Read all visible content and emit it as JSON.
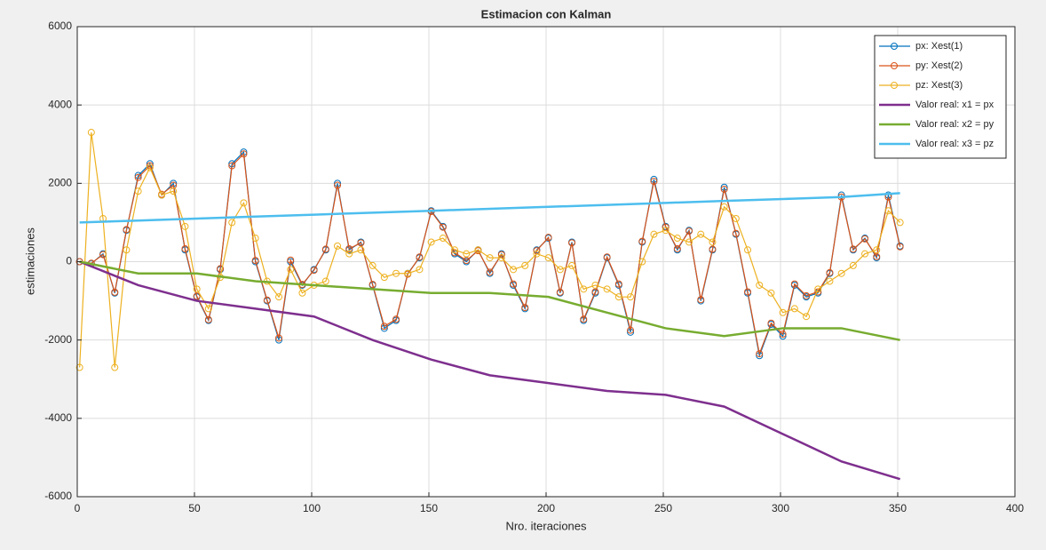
{
  "chart_data": {
    "type": "line",
    "title": "Estimacion con Kalman",
    "xlabel": "Nro. iteraciones",
    "ylabel": "estimaciones",
    "xlim": [
      0,
      400
    ],
    "xticks": [
      0,
      50,
      100,
      150,
      200,
      250,
      300,
      350,
      400
    ],
    "ylim": [
      -6000,
      6000
    ],
    "yticks": [
      -6000,
      -4000,
      -2000,
      0,
      2000,
      4000,
      6000
    ],
    "grid": true,
    "legend": "upper right",
    "series": [
      {
        "name": "px: Xest(1)",
        "color": "#0072bd",
        "marker": "circle",
        "x": [
          1,
          6,
          11,
          16,
          21,
          26,
          31,
          36,
          41,
          46,
          51,
          56,
          61,
          66,
          71,
          76,
          81,
          86,
          91,
          96,
          101,
          106,
          111,
          116,
          121,
          126,
          131,
          136,
          141,
          146,
          151,
          156,
          161,
          166,
          171,
          176,
          181,
          186,
          191,
          196,
          201,
          206,
          211,
          216,
          221,
          226,
          231,
          236,
          241,
          246,
          251,
          256,
          261,
          266,
          271,
          276,
          281,
          286,
          291,
          296,
          301,
          306,
          311,
          316,
          321,
          326,
          331,
          336,
          341,
          346,
          351
        ],
        "values": [
          0,
          -50,
          200,
          -800,
          800,
          2200,
          2500,
          1700,
          2000,
          300,
          -900,
          -1500,
          -200,
          2500,
          2800,
          0,
          -1000,
          -2000,
          0,
          -600,
          -200,
          300,
          2000,
          300,
          500,
          -600,
          -1700,
          -1500,
          -300,
          100,
          1300,
          900,
          200,
          0,
          300,
          -300,
          200,
          -600,
          -1200,
          300,
          600,
          -800,
          500,
          -1500,
          -800,
          100,
          -600,
          -1800,
          500,
          2100,
          900,
          300,
          800,
          -1000,
          300,
          1900,
          700,
          -800,
          -2400,
          -1600,
          -1900,
          -600,
          -900,
          -800,
          -300,
          1700,
          300,
          600,
          100,
          1700,
          400
        ]
      },
      {
        "name": "py: Xest(2)",
        "color": "#d95319",
        "marker": "circle",
        "x": [
          1,
          6,
          11,
          16,
          21,
          26,
          31,
          36,
          41,
          46,
          51,
          56,
          61,
          66,
          71,
          76,
          81,
          86,
          91,
          96,
          101,
          106,
          111,
          116,
          121,
          126,
          131,
          136,
          141,
          146,
          151,
          156,
          161,
          166,
          171,
          176,
          181,
          186,
          191,
          196,
          201,
          206,
          211,
          216,
          221,
          226,
          231,
          236,
          241,
          246,
          251,
          256,
          261,
          266,
          271,
          276,
          281,
          286,
          291,
          296,
          301,
          306,
          311,
          316,
          321,
          326,
          331,
          336,
          341,
          346,
          351
        ],
        "values": [
          0,
          -40,
          180,
          -780,
          820,
          2150,
          2450,
          1720,
          1950,
          330,
          -880,
          -1480,
          -180,
          2450,
          2750,
          30,
          -980,
          -1950,
          40,
          -580,
          -220,
          320,
          1950,
          330,
          480,
          -580,
          -1650,
          -1470,
          -320,
          120,
          1280,
          880,
          230,
          30,
          280,
          -270,
          180,
          -570,
          -1170,
          280,
          620,
          -780,
          480,
          -1470,
          -770,
          120,
          -570,
          -1750,
          520,
          2050,
          880,
          330,
          780,
          -970,
          320,
          1850,
          720,
          -770,
          -2350,
          -1570,
          -1850,
          -570,
          -870,
          -770,
          -280,
          1650,
          320,
          580,
          130,
          1650,
          380
        ]
      },
      {
        "name": "pz: Xest(3)",
        "color": "#edb120",
        "marker": "circle",
        "x": [
          1,
          6,
          11,
          16,
          21,
          26,
          31,
          36,
          41,
          46,
          51,
          56,
          61,
          66,
          71,
          76,
          81,
          86,
          91,
          96,
          101,
          106,
          111,
          116,
          121,
          126,
          131,
          136,
          141,
          146,
          151,
          156,
          161,
          166,
          171,
          176,
          181,
          186,
          191,
          196,
          201,
          206,
          211,
          216,
          221,
          226,
          231,
          236,
          241,
          246,
          251,
          256,
          261,
          266,
          271,
          276,
          281,
          286,
          291,
          296,
          301,
          306,
          311,
          316,
          321,
          326,
          331,
          336,
          341,
          346,
          351
        ],
        "values": [
          -2700,
          3300,
          1100,
          -2700,
          300,
          1800,
          2400,
          1700,
          1800,
          900,
          -700,
          -1200,
          -400,
          1000,
          1500,
          600,
          -500,
          -900,
          -200,
          -800,
          -600,
          -500,
          400,
          200,
          300,
          -100,
          -400,
          -300,
          -300,
          -200,
          500,
          600,
          300,
          200,
          300,
          100,
          100,
          -200,
          -100,
          200,
          100,
          -200,
          -100,
          -700,
          -600,
          -700,
          -900,
          -900,
          0,
          700,
          800,
          600,
          500,
          700,
          500,
          1400,
          1100,
          300,
          -600,
          -800,
          -1300,
          -1200,
          -1400,
          -700,
          -500,
          -300,
          -100,
          200,
          300,
          1300,
          1000
        ]
      },
      {
        "name": "Valor real: x1 = px",
        "color": "#7e2f8e",
        "x": [
          1,
          26,
          51,
          76,
          101,
          126,
          151,
          176,
          201,
          226,
          251,
          276,
          301,
          326,
          351
        ],
        "values": [
          0,
          -600,
          -1000,
          -1200,
          -1400,
          -2000,
          -2500,
          -2900,
          -3100,
          -3300,
          -3400,
          -3700,
          -4400,
          -5100,
          -5550
        ]
      },
      {
        "name": "Valor real: x2 = py",
        "color": "#77ac30",
        "x": [
          1,
          26,
          51,
          76,
          101,
          126,
          151,
          176,
          201,
          226,
          251,
          276,
          301,
          326,
          351
        ],
        "values": [
          0,
          -300,
          -300,
          -500,
          -600,
          -700,
          -800,
          -800,
          -900,
          -1300,
          -1700,
          -1900,
          -1700,
          -1700,
          -2000
        ]
      },
      {
        "name": "Valor real: x3 = pz",
        "color": "#4dbeee",
        "x": [
          1,
          26,
          51,
          76,
          101,
          126,
          151,
          176,
          201,
          226,
          251,
          276,
          301,
          326,
          351
        ],
        "values": [
          1000,
          1050,
          1100,
          1150,
          1200,
          1250,
          1300,
          1350,
          1400,
          1450,
          1500,
          1550,
          1600,
          1650,
          1750
        ]
      }
    ]
  }
}
